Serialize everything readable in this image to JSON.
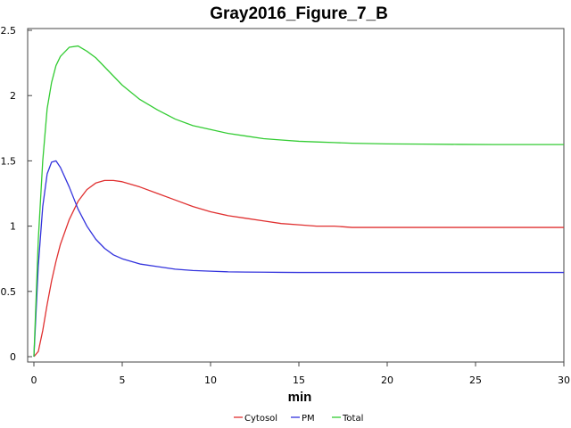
{
  "chart_data": {
    "type": "line",
    "title": "Gray2016_Figure_7_B",
    "xlabel": "min",
    "ylabel": "",
    "xlim": [
      0,
      30
    ],
    "ylim": [
      0,
      2.5
    ],
    "xticks": [
      0,
      5,
      10,
      15,
      20,
      25,
      30
    ],
    "yticks": [
      0,
      0.5,
      1,
      1.5,
      2,
      2.5
    ],
    "ytick_labels": [
      "0",
      "0.5",
      "1",
      "1.5",
      "2",
      "2.5"
    ],
    "grid": false,
    "legend_position": "bottom-center",
    "x": [
      0,
      0.25,
      0.5,
      0.75,
      1,
      1.25,
      1.5,
      2,
      2.5,
      3,
      3.5,
      4,
      4.5,
      5,
      6,
      7,
      8,
      9,
      10,
      11,
      12,
      13,
      14,
      15,
      16,
      17,
      18,
      20,
      22,
      24,
      26,
      28,
      30
    ],
    "series": [
      {
        "name": "Cytosol",
        "color": "#e03030",
        "values": [
          0,
          0.04,
          0.2,
          0.4,
          0.58,
          0.73,
          0.86,
          1.05,
          1.19,
          1.28,
          1.33,
          1.35,
          1.35,
          1.34,
          1.3,
          1.25,
          1.2,
          1.15,
          1.11,
          1.08,
          1.06,
          1.04,
          1.02,
          1.01,
          1.0,
          1.0,
          0.99,
          0.99,
          0.99,
          0.99,
          0.99,
          0.99,
          0.99
        ]
      },
      {
        "name": "PM",
        "color": "#3333dd",
        "values": [
          0,
          0.7,
          1.15,
          1.4,
          1.49,
          1.5,
          1.45,
          1.3,
          1.13,
          1.0,
          0.9,
          0.83,
          0.78,
          0.75,
          0.71,
          0.69,
          0.67,
          0.66,
          0.655,
          0.65,
          0.648,
          0.647,
          0.646,
          0.645,
          0.645,
          0.645,
          0.645,
          0.645,
          0.645,
          0.645,
          0.645,
          0.645,
          0.645
        ]
      },
      {
        "name": "Total",
        "color": "#33cc33",
        "values": [
          0,
          0.9,
          1.5,
          1.9,
          2.1,
          2.23,
          2.3,
          2.37,
          2.38,
          2.34,
          2.29,
          2.22,
          2.15,
          2.08,
          1.97,
          1.89,
          1.82,
          1.77,
          1.74,
          1.71,
          1.69,
          1.67,
          1.66,
          1.65,
          1.645,
          1.64,
          1.635,
          1.63,
          1.628,
          1.626,
          1.625,
          1.625,
          1.625
        ]
      }
    ]
  }
}
